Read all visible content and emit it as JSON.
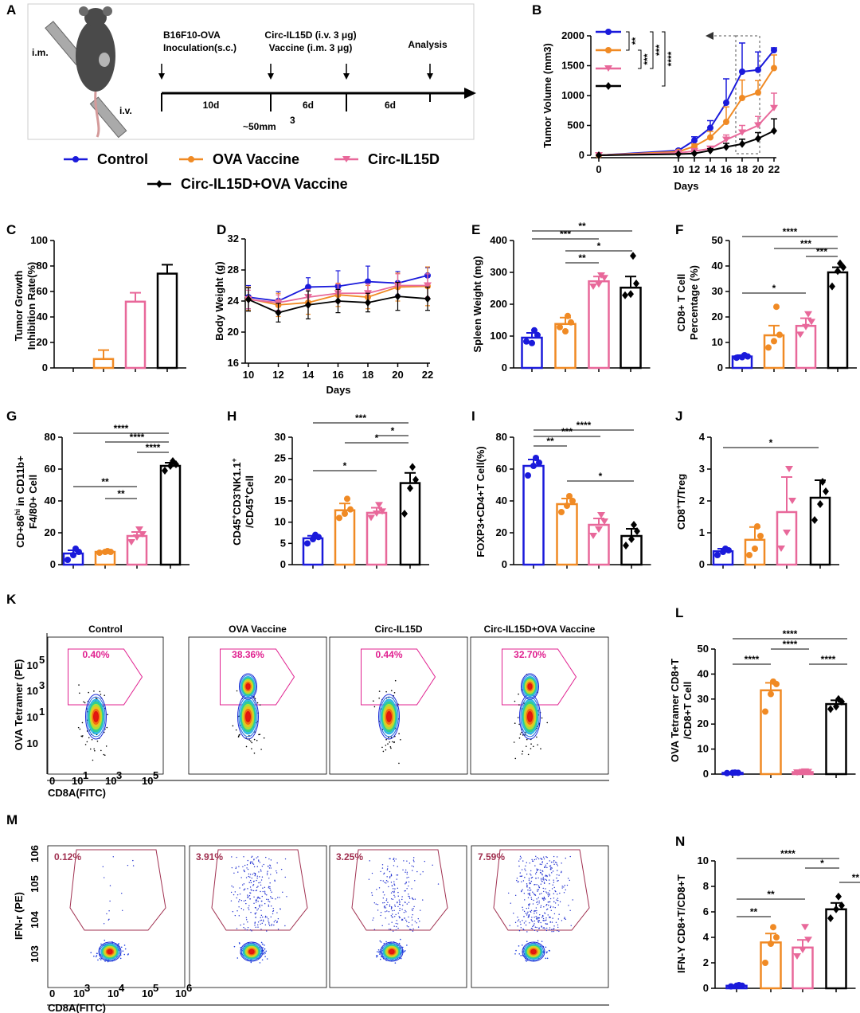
{
  "colors": {
    "control": "#1a1adb",
    "ova": "#f08a24",
    "circ": "#e8689a",
    "combo": "#000000",
    "gate_k": "#e0208f",
    "gate_m": "#a03050"
  },
  "legend": [
    "Control",
    "OVA Vaccine",
    "Circ-IL15D",
    "Circ-IL15D+OVA Vaccine"
  ],
  "panel_letters": [
    "A",
    "B",
    "C",
    "D",
    "E",
    "F",
    "G",
    "H",
    "I",
    "J",
    "K",
    "L",
    "M",
    "N"
  ],
  "schematic": {
    "im": "i.m.",
    "iv": "i.v.",
    "step1": [
      "B16F10-OVA",
      "Inoculation(s.c.)"
    ],
    "step2": [
      "Circ-IL15D (i.v. 3 μg)",
      "Vaccine (i.m. 3 μg)"
    ],
    "step3": "Analysis",
    "intervals": [
      "10d",
      "6d",
      "6d"
    ],
    "size_base": "~50mm",
    "size_sup": "3"
  },
  "chart_data": [
    {
      "id": "B",
      "type": "line",
      "ylabel": "Tumor Volume (mm",
      "ylabel_sup": "3",
      "ylabel_end": ")",
      "xlabel": "Days",
      "x": [
        0,
        10,
        12,
        14,
        16,
        18,
        20,
        22
      ],
      "xlim": [
        0,
        22
      ],
      "ylim": [
        0,
        2000
      ],
      "yticks": [
        0,
        500,
        1000,
        1500,
        2000
      ],
      "series": [
        {
          "name": "Control",
          "values": [
            0,
            80,
            250,
            460,
            880,
            1400,
            1430,
            1760
          ],
          "err": [
            0,
            20,
            60,
            120,
            400,
            480,
            300,
            40
          ]
        },
        {
          "name": "OVA Vaccine",
          "values": [
            0,
            60,
            150,
            300,
            560,
            960,
            1050,
            1460
          ],
          "err": [
            0,
            15,
            40,
            100,
            250,
            300,
            200,
            220
          ]
        },
        {
          "name": "Circ-IL15D",
          "values": [
            0,
            40,
            70,
            110,
            260,
            380,
            500,
            790
          ],
          "err": [
            0,
            10,
            20,
            40,
            80,
            120,
            150,
            250
          ]
        },
        {
          "name": "Circ-IL15D+OVA Vaccine",
          "values": [
            0,
            20,
            30,
            80,
            140,
            190,
            280,
            410
          ],
          "err": [
            0,
            8,
            10,
            30,
            60,
            80,
            100,
            200
          ]
        }
      ],
      "sig": [
        "**",
        "***",
        "***",
        "****"
      ]
    },
    {
      "id": "C",
      "type": "bar",
      "ylabel": [
        "Tumor Growth",
        "Inhibition Rate(%)"
      ],
      "ylim": [
        0,
        100
      ],
      "yticks": [
        0,
        20,
        40,
        60,
        80,
        100
      ],
      "values": [
        0,
        7,
        52,
        74
      ],
      "err": [
        0,
        7,
        7,
        7
      ]
    },
    {
      "id": "D",
      "type": "line",
      "ylabel": "Body Weight (g)",
      "xlabel": "Days",
      "x": [
        10,
        12,
        14,
        16,
        18,
        20,
        22
      ],
      "xlim": [
        10,
        22
      ],
      "ylim": [
        16,
        32
      ],
      "yticks": [
        16,
        20,
        24,
        28,
        32
      ],
      "series": [
        {
          "name": "Control",
          "values": [
            24.5,
            24.0,
            25.8,
            25.9,
            26.5,
            26.3,
            27.3
          ],
          "err": [
            1.5,
            1.2,
            1.2,
            2.0,
            2.0,
            1.5,
            1.0
          ]
        },
        {
          "name": "OVA Vaccine",
          "values": [
            24.3,
            23.5,
            23.8,
            24.8,
            24.5,
            25.8,
            25.9
          ],
          "err": [
            1.5,
            1.5,
            1.5,
            1.5,
            1.5,
            1.8,
            2.5
          ]
        },
        {
          "name": "Circ-IL15D",
          "values": [
            24.2,
            23.8,
            24.5,
            25.0,
            25.0,
            26.0,
            26.0
          ],
          "err": [
            1.2,
            1.0,
            1.0,
            1.2,
            1.2,
            1.5,
            1.5
          ]
        },
        {
          "name": "Circ-IL15D+OVA Vaccine",
          "values": [
            24.2,
            22.5,
            23.5,
            24.0,
            23.8,
            24.6,
            24.3
          ],
          "err": [
            1.5,
            1.2,
            1.8,
            1.5,
            1.2,
            1.8,
            1.5
          ]
        }
      ]
    },
    {
      "id": "E",
      "type": "bar",
      "ylabel": [
        "Spleen Weight (mg)"
      ],
      "ylim": [
        0,
        400
      ],
      "yticks": [
        0,
        100,
        200,
        300,
        400
      ],
      "values": [
        95,
        138,
        272,
        252
      ],
      "err": [
        15,
        20,
        15,
        35
      ],
      "points": [
        [
          83,
          78,
          103,
          118
        ],
        [
          128,
          115,
          143,
          163
        ],
        [
          255,
          262,
          282,
          290
        ],
        [
          228,
          232,
          265,
          352
        ]
      ],
      "sig": [
        {
          "a": 0,
          "b": 3,
          "t": "**"
        },
        {
          "a": 0,
          "b": 2,
          "t": "***"
        },
        {
          "a": 1,
          "b": 3,
          "t": "*"
        },
        {
          "a": 1,
          "b": 2,
          "t": "**"
        }
      ]
    },
    {
      "id": "F",
      "type": "bar",
      "ylabel": [
        "CD8+ T Cell",
        "Percentage (%)"
      ],
      "ylim": [
        0,
        50
      ],
      "yticks": [
        0,
        10,
        20,
        30,
        40,
        50
      ],
      "values": [
        4.5,
        12.8,
        16.5,
        37.5
      ],
      "err": [
        0.5,
        3.8,
        3.0,
        2.0
      ],
      "points": [
        [
          4,
          4.2,
          4.5,
          5
        ],
        [
          8,
          10.5,
          13,
          24
        ],
        [
          13,
          16,
          18,
          21
        ],
        [
          32,
          38,
          39.5,
          41
        ]
      ],
      "sig": [
        {
          "a": 0,
          "b": 3,
          "t": "****"
        },
        {
          "a": 1,
          "b": 3,
          "t": "***"
        },
        {
          "a": 2,
          "b": 3,
          "t": "***"
        },
        {
          "a": 0,
          "b": 2,
          "t": "*"
        }
      ]
    },
    {
      "id": "G",
      "type": "bar",
      "ylabel": [
        "CD+86",
        "hi",
        "in CD11b+",
        "F4/80+ Cell"
      ],
      "ylim": [
        0,
        80
      ],
      "yticks": [
        0,
        20,
        40,
        60,
        80
      ],
      "values": [
        7,
        8,
        18,
        62
      ],
      "err": [
        2,
        0.5,
        2.5,
        2
      ],
      "points": [
        [
          3,
          6,
          8,
          10
        ],
        [
          7.5,
          8,
          8,
          8.5
        ],
        [
          14,
          17,
          19,
          22
        ],
        [
          59,
          62,
          63,
          65
        ]
      ],
      "sig": [
        {
          "a": 0,
          "b": 3,
          "t": "****"
        },
        {
          "a": 1,
          "b": 3,
          "t": "****"
        },
        {
          "a": 2,
          "b": 3,
          "t": "****"
        },
        {
          "a": 0,
          "b": 2,
          "t": "**"
        },
        {
          "a": 1,
          "b": 2,
          "t": "**"
        }
      ]
    },
    {
      "id": "H",
      "type": "bar",
      "ylabel": [
        "CD45",
        "+",
        "CD3",
        "-",
        "NK1.1",
        "+",
        "/CD45",
        "+",
        "Cell"
      ],
      "ylim": [
        0,
        30
      ],
      "yticks": [
        0,
        5,
        10,
        15,
        20,
        25,
        30
      ],
      "values": [
        6.2,
        12.8,
        12.2,
        19.2
      ],
      "err": [
        0.6,
        1.6,
        1.2,
        2.4
      ],
      "points": [
        [
          5,
          6,
          6.5,
          7
        ],
        [
          11,
          12,
          13,
          15.5
        ],
        [
          11,
          12,
          12.5,
          14
        ],
        [
          12,
          18,
          20,
          23
        ]
      ],
      "sig": [
        {
          "a": 0,
          "b": 3,
          "t": "***"
        },
        {
          "a": 2,
          "b": 3,
          "t": "*"
        },
        {
          "a": 1,
          "b": 3,
          "t": "*"
        },
        {
          "a": 0,
          "b": 2,
          "t": "*"
        }
      ]
    },
    {
      "id": "I",
      "type": "bar",
      "ylabel": [
        "FOXP3+CD4+T Cell(%)"
      ],
      "ylim": [
        0,
        80
      ],
      "yticks": [
        0,
        20,
        40,
        60,
        80
      ],
      "values": [
        62,
        38,
        25,
        18
      ],
      "err": [
        4,
        3.5,
        4,
        4.5
      ],
      "points": [
        [
          56,
          62,
          64,
          67
        ],
        [
          33,
          37,
          40,
          43
        ],
        [
          18,
          22,
          27,
          31
        ],
        [
          12,
          16,
          21,
          25
        ]
      ],
      "sig": [
        {
          "a": 0,
          "b": 3,
          "t": "****"
        },
        {
          "a": 0,
          "b": 2,
          "t": "***"
        },
        {
          "a": 0,
          "b": 1,
          "t": "**"
        },
        {
          "a": 1,
          "b": 3,
          "t": "*"
        }
      ]
    },
    {
      "id": "J",
      "type": "bar",
      "ylabel": [
        "CD8",
        "+",
        "T/Treg"
      ],
      "ylim": [
        0,
        4
      ],
      "yticks": [
        0,
        1,
        2,
        3,
        4
      ],
      "values": [
        0.42,
        0.78,
        1.65,
        2.1
      ],
      "err": [
        0.08,
        0.4,
        1.1,
        0.55
      ],
      "points": [
        [
          0.3,
          0.4,
          0.45,
          0.5
        ],
        [
          0.3,
          0.5,
          0.9,
          1.2
        ],
        [
          0.5,
          1.0,
          2.0,
          3.0
        ],
        [
          1.4,
          1.9,
          2.3,
          2.6
        ]
      ],
      "sig": [
        {
          "a": 0,
          "b": 3,
          "t": "*"
        }
      ]
    },
    {
      "id": "L",
      "type": "bar",
      "ylabel": [
        "OVA Tetramer CD8+T",
        "/CD8+T Cell"
      ],
      "ylim": [
        0,
        50
      ],
      "yticks": [
        0,
        10,
        20,
        30,
        40,
        50
      ],
      "values": [
        0.5,
        33.5,
        0.8,
        28
      ],
      "err": [
        0.1,
        3,
        0.2,
        1.5
      ],
      "points": [
        [
          0.4,
          0.5,
          0.5,
          0.6
        ],
        [
          25,
          32,
          36,
          37
        ],
        [
          0.6,
          0.8,
          0.8,
          1
        ],
        [
          26,
          27,
          29,
          30
        ]
      ],
      "sig": [
        {
          "a": 0,
          "b": 3,
          "t": "****"
        },
        {
          "a": 1,
          "b": 2,
          "t": "****"
        },
        {
          "a": 0,
          "b": 1,
          "t": "****"
        },
        {
          "a": 2,
          "b": 3,
          "t": "****"
        }
      ]
    },
    {
      "id": "N",
      "type": "bar",
      "ylabel": [
        "IFN-Y CD8+T/CD8+T"
      ],
      "ylim": [
        0,
        10
      ],
      "yticks": [
        0,
        2,
        4,
        6,
        8,
        10
      ],
      "values": [
        0.2,
        3.6,
        3.2,
        6.2
      ],
      "err": [
        0.05,
        0.7,
        0.6,
        0.5
      ],
      "points": [
        [
          0.15,
          0.2,
          0.2,
          0.25
        ],
        [
          2,
          3.5,
          4.0,
          4.8
        ],
        [
          2.5,
          3.0,
          3.8,
          4.8
        ],
        [
          5.5,
          6.2,
          6.5,
          7.2
        ]
      ],
      "sig": [
        {
          "a": 0,
          "b": 3,
          "t": "****"
        },
        {
          "a": 2,
          "b": 3,
          "t": "*"
        },
        {
          "a": 3,
          "b": 3.95,
          "t": "**"
        },
        {
          "a": 0,
          "b": 2,
          "t": "**"
        },
        {
          "a": 0,
          "b": 1,
          "t": "**"
        }
      ]
    }
  ],
  "flow_k": {
    "groups": [
      "Control",
      "OVA Vaccine",
      "Circ-IL15D",
      "Circ-IL15D+OVA Vaccine"
    ],
    "pcts": [
      "0.40%",
      "38.36%",
      "0.44%",
      "32.70%"
    ],
    "ylabel": "OVA Tetramer (PE)",
    "xlabel": "CD8A(FITC)",
    "xticks": [
      "0",
      "10",
      "1",
      "10",
      "3",
      "10",
      "5"
    ]
  },
  "flow_m": {
    "pcts": [
      "0.12%",
      "3.91%",
      "3.25%",
      "7.59%"
    ],
    "ylabel": "IFN-r (PE)",
    "xlabel": "CD8A(FITC)"
  }
}
